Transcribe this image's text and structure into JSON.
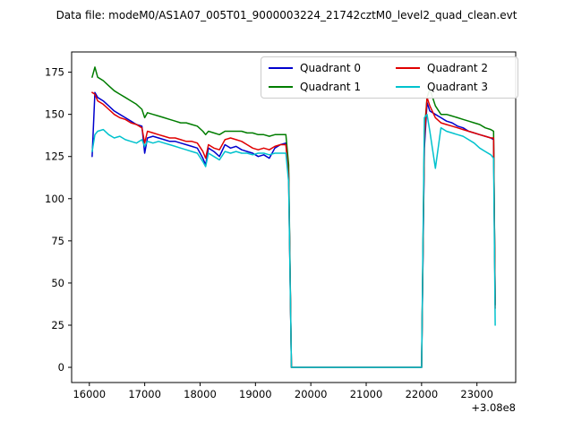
{
  "chart_data": {
    "type": "line",
    "title": "Data file: modeM0/AS1A07_005T01_9000003224_21742cztM0_level2_quad_clean.evt",
    "xlabel": "",
    "ylabel": "",
    "x_axis_offset": "+3.08e8",
    "xlim": [
      15680,
      23700
    ],
    "ylim": [
      -9,
      187
    ],
    "x_ticks": [
      16000,
      17000,
      18000,
      19000,
      20000,
      21000,
      22000,
      23000
    ],
    "y_ticks": [
      0,
      25,
      50,
      75,
      100,
      125,
      150,
      175
    ],
    "grid": false,
    "legend_position": "upper right",
    "legend_columns": 2,
    "x": [
      16050,
      16100,
      16150,
      16250,
      16350,
      16450,
      16550,
      16650,
      16750,
      16850,
      16950,
      17000,
      17050,
      17150,
      17250,
      17350,
      17450,
      17550,
      17650,
      17750,
      17850,
      17950,
      18050,
      18100,
      18150,
      18250,
      18350,
      18450,
      18550,
      18650,
      18750,
      18850,
      18950,
      19050,
      19150,
      19250,
      19350,
      19450,
      19550,
      19600,
      19650,
      21950,
      22000,
      22050,
      22100,
      22150,
      22250,
      22350,
      22450,
      22550,
      22650,
      22750,
      22850,
      22950,
      23050,
      23150,
      23250,
      23300,
      23330
    ],
    "series": [
      {
        "name": "Quadrant 0",
        "color": "#0000cd",
        "values": [
          125,
          163,
          160,
          158,
          155,
          152,
          150,
          148,
          146,
          144,
          143,
          127,
          136,
          137,
          136,
          135,
          134,
          134,
          133,
          132,
          131,
          130,
          124,
          120,
          130,
          128,
          125,
          132,
          130,
          131,
          129,
          128,
          127,
          125,
          126,
          124,
          130,
          132,
          133,
          115,
          0,
          0,
          0,
          130,
          157,
          152,
          150,
          148,
          146,
          145,
          143,
          142,
          140,
          139,
          138,
          137,
          136,
          135,
          37
        ]
      },
      {
        "name": "Quadrant 1",
        "color": "#007d00",
        "values": [
          172,
          178,
          172,
          170,
          167,
          164,
          162,
          160,
          158,
          156,
          153,
          148,
          151,
          150,
          149,
          148,
          147,
          146,
          145,
          145,
          144,
          143,
          140,
          138,
          140,
          139,
          138,
          140,
          140,
          140,
          140,
          139,
          139,
          138,
          138,
          137,
          138,
          138,
          138,
          120,
          0,
          0,
          0,
          140,
          160,
          165,
          155,
          150,
          150,
          149,
          148,
          147,
          146,
          145,
          144,
          142,
          141,
          140,
          37
        ]
      },
      {
        "name": "Quadrant 2",
        "color": "#e00000",
        "values": [
          163,
          162,
          158,
          156,
          153,
          150,
          148,
          147,
          145,
          144,
          142,
          133,
          140,
          139,
          138,
          137,
          136,
          136,
          135,
          134,
          134,
          133,
          128,
          124,
          132,
          130,
          129,
          135,
          136,
          135,
          134,
          132,
          130,
          129,
          130,
          129,
          131,
          132,
          132,
          113,
          0,
          0,
          0,
          135,
          160,
          155,
          148,
          145,
          144,
          143,
          142,
          141,
          140,
          139,
          138,
          137,
          136,
          136,
          35
        ]
      },
      {
        "name": "Quadrant 3",
        "color": "#00c2cd",
        "values": [
          128,
          138,
          140,
          141,
          138,
          136,
          137,
          135,
          134,
          133,
          135,
          131,
          134,
          133,
          134,
          133,
          132,
          131,
          130,
          129,
          128,
          127,
          122,
          119,
          127,
          125,
          123,
          128,
          127,
          128,
          127,
          127,
          126,
          127,
          127,
          126,
          127,
          127,
          127,
          110,
          0,
          0,
          0,
          148,
          150,
          140,
          118,
          142,
          140,
          139,
          138,
          137,
          135,
          133,
          130,
          128,
          126,
          124,
          25
        ]
      }
    ]
  }
}
